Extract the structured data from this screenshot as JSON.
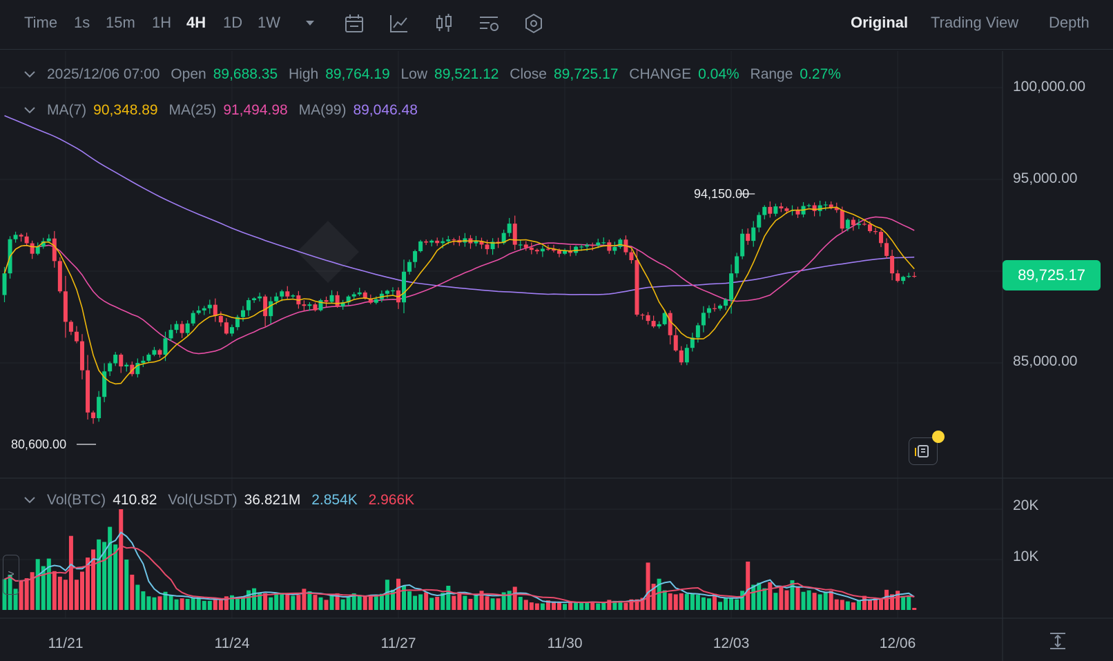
{
  "toolbar": {
    "time_label": "Time",
    "intervals": [
      "1s",
      "15m",
      "1H",
      "4H",
      "1D",
      "1W"
    ],
    "active_interval": "4H",
    "icons": [
      "chevron-down-icon",
      "calendar-icon",
      "indicator-icon",
      "candle-type-icon",
      "chart-settings-icon",
      "hexagon-settings-icon"
    ],
    "views": [
      "Original",
      "Trading View",
      "Depth"
    ],
    "active_view": "Original"
  },
  "ohlc": {
    "date": "2025/12/06 07:00",
    "open_label": "Open",
    "open": "89,688.35",
    "high_label": "High",
    "high": "89,764.19",
    "low_label": "Low",
    "low": "89,521.12",
    "close_label": "Close",
    "close": "89,725.17",
    "change_label": "CHANGE",
    "change": "0.04%",
    "range_label": "Range",
    "range": "0.27%"
  },
  "ma": {
    "ma7_label": "MA(7)",
    "ma7": "90,348.89",
    "ma25_label": "MA(25)",
    "ma25": "91,494.98",
    "ma99_label": "MA(99)",
    "ma99": "89,046.48"
  },
  "volume_info": {
    "btc_label": "Vol(BTC)",
    "btc": "410.82",
    "usdt_label": "Vol(USDT)",
    "usdt": "36.821M",
    "ma5": "2.854K",
    "ma10": "2.966K"
  },
  "last_price": "89,725.17",
  "colors": {
    "up": "#0ecb81",
    "down": "#f6465d",
    "ma7": "#f0b90b",
    "ma25": "#e84fa6",
    "ma99": "#a17ef5",
    "vol_ma5": "#6ec4e6",
    "vol_ma10": "#e84b6b"
  },
  "chart_data": {
    "type": "candlestick",
    "interval": "4H",
    "price_axis": {
      "ticks": [
        "100,000.00",
        "95,000.00",
        "85,000.00"
      ],
      "values": [
        100000,
        95000,
        85000
      ],
      "range": [
        79500,
        101000
      ]
    },
    "volume_axis": {
      "ticks": [
        "20K",
        "10K"
      ],
      "values": [
        20000,
        10000
      ],
      "range": [
        0,
        23000
      ]
    },
    "x_ticks": [
      "11/21",
      "11/24",
      "11/27",
      "11/30",
      "12/03",
      "12/06"
    ],
    "x_tick_index": [
      11,
      41,
      71,
      101,
      131,
      161
    ],
    "annotations": [
      {
        "label": "94,150.00",
        "value": 94150,
        "index": 136
      },
      {
        "label": "80,600.00",
        "value": 80600,
        "index": 16
      }
    ],
    "candles_close": [
      89880,
      91740,
      91980,
      91890,
      91520,
      90950,
      91340,
      91630,
      91780,
      90550,
      88900,
      87240,
      86700,
      86180,
      84600,
      82300,
      81990,
      83150,
      84540,
      84980,
      85450,
      84810,
      84900,
      84390,
      85000,
      85120,
      85450,
      85700,
      85450,
      86340,
      86800,
      87120,
      86630,
      87150,
      87720,
      87860,
      87980,
      88170,
      87560,
      87210,
      86600,
      86950,
      87500,
      87870,
      88420,
      88520,
      88620,
      87550,
      88360,
      88620,
      88900,
      88620,
      88680,
      88190,
      88110,
      88190,
      87870,
      88420,
      88330,
      88690,
      88080,
      88300,
      88620,
      88740,
      88840,
      88510,
      88280,
      88470,
      88770,
      88930,
      88950,
      88300,
      89970,
      90500,
      91090,
      91620,
      91560,
      91660,
      91530,
      91630,
      91730,
      91700,
      91560,
      91790,
      91520,
      91640,
      91450,
      91200,
      91600,
      91530,
      92080,
      92590,
      91440,
      91450,
      91280,
      91160,
      91080,
      91220,
      91210,
      91120,
      90950,
      91100,
      91000,
      91330,
      91340,
      91420,
      91410,
      91560,
      91570,
      91110,
      91320,
      91720,
      91030,
      90600,
      87630,
      87600,
      87290,
      86990,
      87110,
      87720,
      86510,
      85680,
      85030,
      85820,
      86380,
      87050,
      87730,
      87980,
      87960,
      88120,
      88440,
      89880,
      90810,
      92040,
      91650,
      92380,
      93060,
      93500,
      93130,
      93530,
      93420,
      93280,
      93320,
      93090,
      93550,
      93590,
      93280,
      93590,
      93630,
      93450,
      93330,
      92320,
      92800,
      92510,
      92580,
      92550,
      92180,
      92140,
      91530,
      90830,
      89880,
      89470,
      89690,
      89740,
      89725.17
    ],
    "candles_ohlc_sample_last": {
      "open": 89688.35,
      "high": 89764.19,
      "low": 89521.12,
      "close": 89725.17
    },
    "volume_btc": [
      6100,
      7000,
      4200,
      5900,
      6300,
      7500,
      10100,
      8700,
      10200,
      7700,
      6600,
      6000,
      14700,
      6000,
      7600,
      10400,
      12000,
      14000,
      13500,
      16500,
      13000,
      20000,
      10000,
      7000,
      5000,
      3700,
      2700,
      2500,
      2700,
      3600,
      3000,
      2100,
      2300,
      2200,
      2400,
      2600,
      1800,
      1800,
      2100,
      2200,
      2700,
      2900,
      2500,
      2700,
      3900,
      4300,
      3500,
      3300,
      2500,
      3300,
      3400,
      3300,
      2800,
      3000,
      4200,
      3700,
      3000,
      2500,
      2000,
      3100,
      3300,
      2100,
      2500,
      3300,
      3000,
      2700,
      3000,
      2700,
      3200,
      6000,
      4000,
      6200,
      4800,
      3700,
      2800,
      3100,
      3500,
      2400,
      2600,
      3400,
      4800,
      2800,
      3600,
      2800,
      2200,
      3100,
      3800,
      2700,
      2300,
      2300,
      3500,
      3800,
      4600,
      2600,
      2000,
      1500,
      1300,
      1300,
      1900,
      1700,
      1500,
      1200,
      1600,
      1600,
      1600,
      1500,
      1600,
      1300,
      1400,
      2000,
      1800,
      1800,
      1400,
      2100,
      2100,
      2400,
      9400,
      5200,
      6200,
      3900,
      3300,
      3100,
      3300,
      3200,
      3300,
      3000,
      2500,
      2300,
      3200,
      1600,
      2400,
      2400,
      2100,
      3800,
      9600,
      5000,
      5400,
      4300,
      5500,
      3400,
      4800,
      3900,
      5900,
      4700,
      3600,
      3900,
      3400,
      3100,
      3500,
      3800,
      2100,
      2000,
      1700,
      1500,
      1900,
      2800,
      2000,
      2300,
      2100,
      4000,
      3100,
      3800,
      2800,
      2900,
      410.82
    ]
  }
}
